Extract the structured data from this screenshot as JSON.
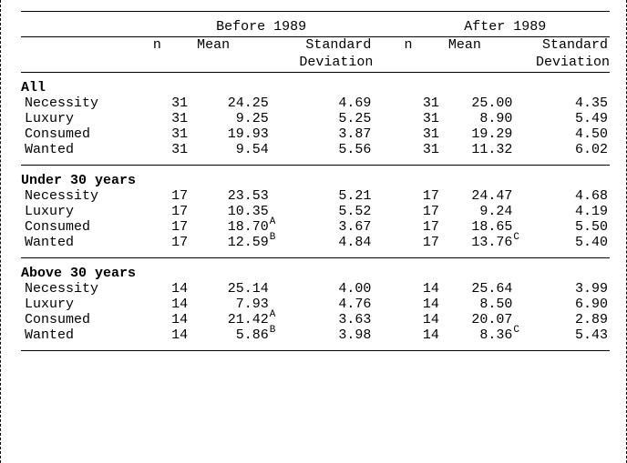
{
  "periods": {
    "before": {
      "label": "Before 1989"
    },
    "after": {
      "label": "After 1989"
    }
  },
  "subheaders": {
    "n": "n",
    "mean": "Mean",
    "sd_line1": "Standard",
    "sd_line2": "Deviation"
  },
  "groups": [
    {
      "title": "All",
      "rows": [
        {
          "label": "Necessity",
          "before": {
            "n": "31",
            "mean": "24.25",
            "sup": "",
            "sd": "4.69"
          },
          "after": {
            "n": "31",
            "mean": "25.00",
            "sup": "",
            "sd": "4.35"
          }
        },
        {
          "label": "Luxury",
          "before": {
            "n": "31",
            "mean": "9.25",
            "sup": "",
            "sd": "5.25"
          },
          "after": {
            "n": "31",
            "mean": "8.90",
            "sup": "",
            "sd": "5.49"
          }
        },
        {
          "label": "Consumed",
          "before": {
            "n": "31",
            "mean": "19.93",
            "sup": "",
            "sd": "3.87"
          },
          "after": {
            "n": "31",
            "mean": "19.29",
            "sup": "",
            "sd": "4.50"
          }
        },
        {
          "label": "Wanted",
          "before": {
            "n": "31",
            "mean": "9.54",
            "sup": "",
            "sd": "5.56"
          },
          "after": {
            "n": "31",
            "mean": "11.32",
            "sup": "",
            "sd": "6.02"
          }
        }
      ]
    },
    {
      "title": "Under 30 years",
      "rows": [
        {
          "label": "Necessity",
          "before": {
            "n": "17",
            "mean": "23.53",
            "sup": "",
            "sd": "5.21"
          },
          "after": {
            "n": "17",
            "mean": "24.47",
            "sup": "",
            "sd": "4.68"
          }
        },
        {
          "label": "Luxury",
          "before": {
            "n": "17",
            "mean": "10.35",
            "sup": "",
            "sd": "5.52"
          },
          "after": {
            "n": "17",
            "mean": "9.24",
            "sup": "",
            "sd": "4.19"
          }
        },
        {
          "label": "Consumed",
          "before": {
            "n": "17",
            "mean": "18.70",
            "sup": "A",
            "sd": "3.67"
          },
          "after": {
            "n": "17",
            "mean": "18.65",
            "sup": "",
            "sd": "5.50"
          }
        },
        {
          "label": "Wanted",
          "before": {
            "n": "17",
            "mean": "12.59",
            "sup": "B",
            "sd": "4.84"
          },
          "after": {
            "n": "17",
            "mean": "13.76",
            "sup": "C",
            "sd": "5.40"
          }
        }
      ]
    },
    {
      "title": "Above 30 years",
      "rows": [
        {
          "label": "Necessity",
          "before": {
            "n": "14",
            "mean": "25.14",
            "sup": "",
            "sd": "4.00"
          },
          "after": {
            "n": "14",
            "mean": "25.64",
            "sup": "",
            "sd": "3.99"
          }
        },
        {
          "label": "Luxury",
          "before": {
            "n": "14",
            "mean": "7.93",
            "sup": "",
            "sd": "4.76"
          },
          "after": {
            "n": "14",
            "mean": "8.50",
            "sup": "",
            "sd": "6.90"
          }
        },
        {
          "label": "Consumed",
          "before": {
            "n": "14",
            "mean": "21.42",
            "sup": "A",
            "sd": "3.63"
          },
          "after": {
            "n": "14",
            "mean": "20.07",
            "sup": "",
            "sd": "2.89"
          }
        },
        {
          "label": "Wanted",
          "before": {
            "n": "14",
            "mean": "5.86",
            "sup": "B",
            "sd": "3.98"
          },
          "after": {
            "n": "14",
            "mean": "8.36",
            "sup": "C",
            "sd": "5.43"
          }
        }
      ]
    }
  ]
}
